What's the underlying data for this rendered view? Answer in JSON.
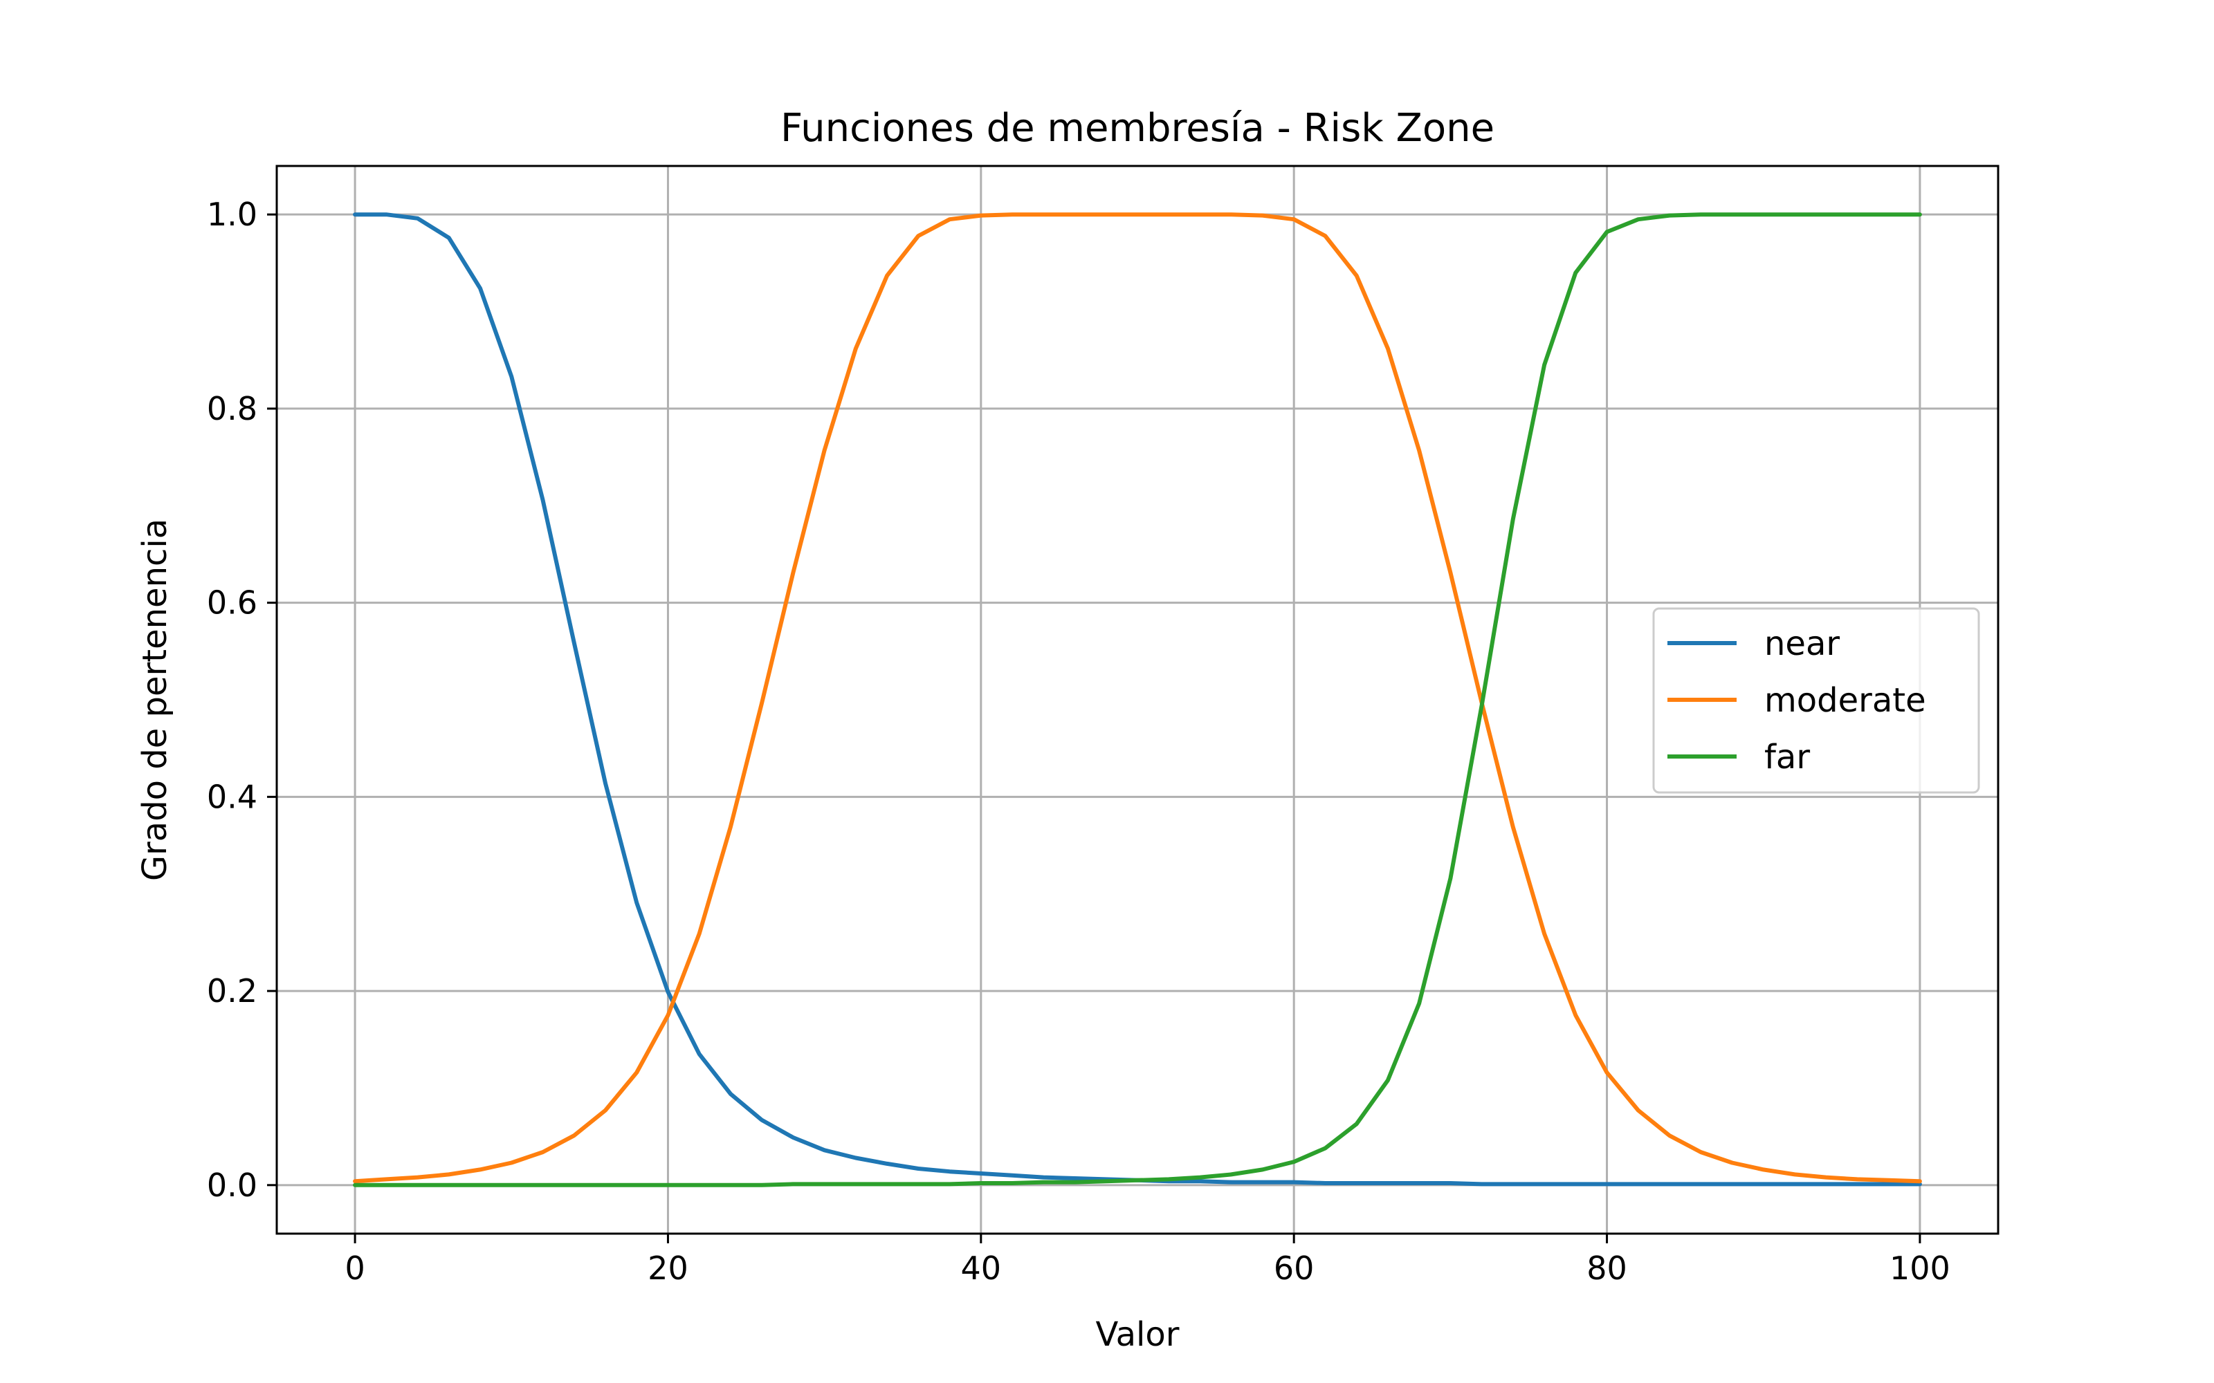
{
  "chart_data": {
    "type": "line",
    "title": "Funciones de membresía - Risk Zone",
    "xlabel": "Valor",
    "ylabel": "Grado de pertenencia",
    "xlim": [
      -5,
      105
    ],
    "ylim": [
      -0.05,
      1.05
    ],
    "xticks": [
      0,
      20,
      40,
      60,
      80,
      100
    ],
    "xtick_labels": [
      "0",
      "20",
      "40",
      "60",
      "80",
      "100"
    ],
    "yticks": [
      0.0,
      0.2,
      0.4,
      0.6,
      0.8,
      1.0
    ],
    "ytick_labels": [
      "0.0",
      "0.2",
      "0.4",
      "0.6",
      "0.8",
      "1.0"
    ],
    "grid": true,
    "legend_position": "center-right",
    "x": [
      0,
      2,
      4,
      6,
      8,
      10,
      12,
      14,
      16,
      18,
      20,
      22,
      24,
      26,
      28,
      30,
      32,
      34,
      36,
      38,
      40,
      42,
      44,
      46,
      48,
      50,
      52,
      54,
      56,
      58,
      60,
      62,
      64,
      66,
      68,
      70,
      72,
      74,
      76,
      78,
      80,
      82,
      84,
      86,
      88,
      90,
      92,
      94,
      96,
      98,
      100
    ],
    "series": [
      {
        "name": "near",
        "color": "#1f77b4",
        "values": [
          1.0,
          1.0,
          0.996,
          0.976,
          0.924,
          0.833,
          0.706,
          0.559,
          0.414,
          0.291,
          0.199,
          0.135,
          0.094,
          0.067,
          0.049,
          0.036,
          0.028,
          0.022,
          0.017,
          0.014,
          0.012,
          0.01,
          0.008,
          0.007,
          0.006,
          0.005,
          0.004,
          0.004,
          0.003,
          0.003,
          0.003,
          0.002,
          0.002,
          0.002,
          0.002,
          0.002,
          0.001,
          0.001,
          0.001,
          0.001,
          0.001,
          0.001,
          0.001,
          0.001,
          0.001,
          0.001,
          0.001,
          0.001,
          0.001,
          0.001,
          0.001
        ]
      },
      {
        "name": "moderate",
        "color": "#ff7f0e",
        "values": [
          0.004,
          0.006,
          0.008,
          0.011,
          0.016,
          0.023,
          0.034,
          0.051,
          0.077,
          0.116,
          0.175,
          0.259,
          0.369,
          0.497,
          0.631,
          0.757,
          0.862,
          0.937,
          0.978,
          0.995,
          0.999,
          1.0,
          1.0,
          1.0,
          1.0,
          1.0,
          1.0,
          1.0,
          1.0,
          0.999,
          0.995,
          0.978,
          0.937,
          0.862,
          0.757,
          0.631,
          0.497,
          0.369,
          0.259,
          0.175,
          0.116,
          0.077,
          0.051,
          0.034,
          0.023,
          0.016,
          0.011,
          0.008,
          0.006,
          0.005,
          0.004
        ]
      },
      {
        "name": "far",
        "color": "#2ca02c",
        "values": [
          0.0,
          0.0,
          0.0,
          0.0,
          0.0,
          0.0,
          0.0,
          0.0,
          0.0,
          0.0,
          0.0,
          0.0,
          0.0,
          0.0,
          0.001,
          0.001,
          0.001,
          0.001,
          0.001,
          0.001,
          0.002,
          0.002,
          0.003,
          0.003,
          0.004,
          0.005,
          0.006,
          0.008,
          0.011,
          0.016,
          0.024,
          0.038,
          0.063,
          0.108,
          0.187,
          0.316,
          0.494,
          0.686,
          0.845,
          0.94,
          0.982,
          0.995,
          0.999,
          1.0,
          1.0,
          1.0,
          1.0,
          1.0,
          1.0,
          1.0,
          1.0
        ]
      }
    ]
  }
}
